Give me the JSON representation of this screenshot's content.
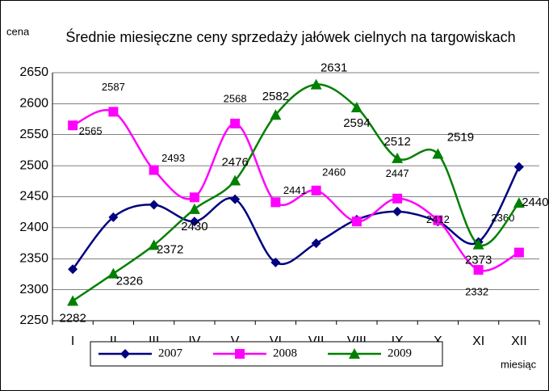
{
  "chart_data": {
    "type": "line",
    "title": "Średnie miesięczne ceny sprzedaży jałówek cielnych na targowiskach",
    "y_label": "cena",
    "x_label": "miesiąc",
    "categories": [
      "I",
      "II",
      "III",
      "IV",
      "V",
      "VI",
      "VII",
      "VIII",
      "IX",
      "X",
      "XI",
      "XII"
    ],
    "series": [
      {
        "name": "2007",
        "color": "#000080",
        "marker": "diamond",
        "values": [
          2333,
          2417,
          2437,
          2410,
          2446,
          2344,
          2375,
          2413,
          2426,
          2410,
          2377,
          2498
        ]
      },
      {
        "name": "2008",
        "color": "#ff00ff",
        "marker": "square",
        "values": [
          2565,
          2587,
          2493,
          2449,
          2568,
          2441,
          2460,
          2410,
          2447,
          2412,
          2332,
          2360
        ],
        "value_labels": [
          "2565",
          "2587",
          "2493",
          null,
          "2568",
          "2441",
          "2460",
          null,
          "2447",
          "2412",
          "2332",
          "2360"
        ]
      },
      {
        "name": "2009",
        "color": "#008000",
        "marker": "triangle",
        "values": [
          2282,
          2326,
          2372,
          2430,
          2476,
          2582,
          2631,
          2594,
          2512,
          2519,
          2373,
          2440
        ],
        "value_labels": [
          "2282",
          "2326",
          "2372",
          "2430",
          "2476",
          "2582",
          "2631",
          "2594",
          "2512",
          "2519",
          "2373",
          "2440"
        ]
      }
    ],
    "ylim": [
      2250,
      2650
    ],
    "yticks": [
      2250,
      2300,
      2350,
      2400,
      2450,
      2500,
      2550,
      2600,
      2650
    ],
    "grid": true,
    "legend": "bottom"
  }
}
